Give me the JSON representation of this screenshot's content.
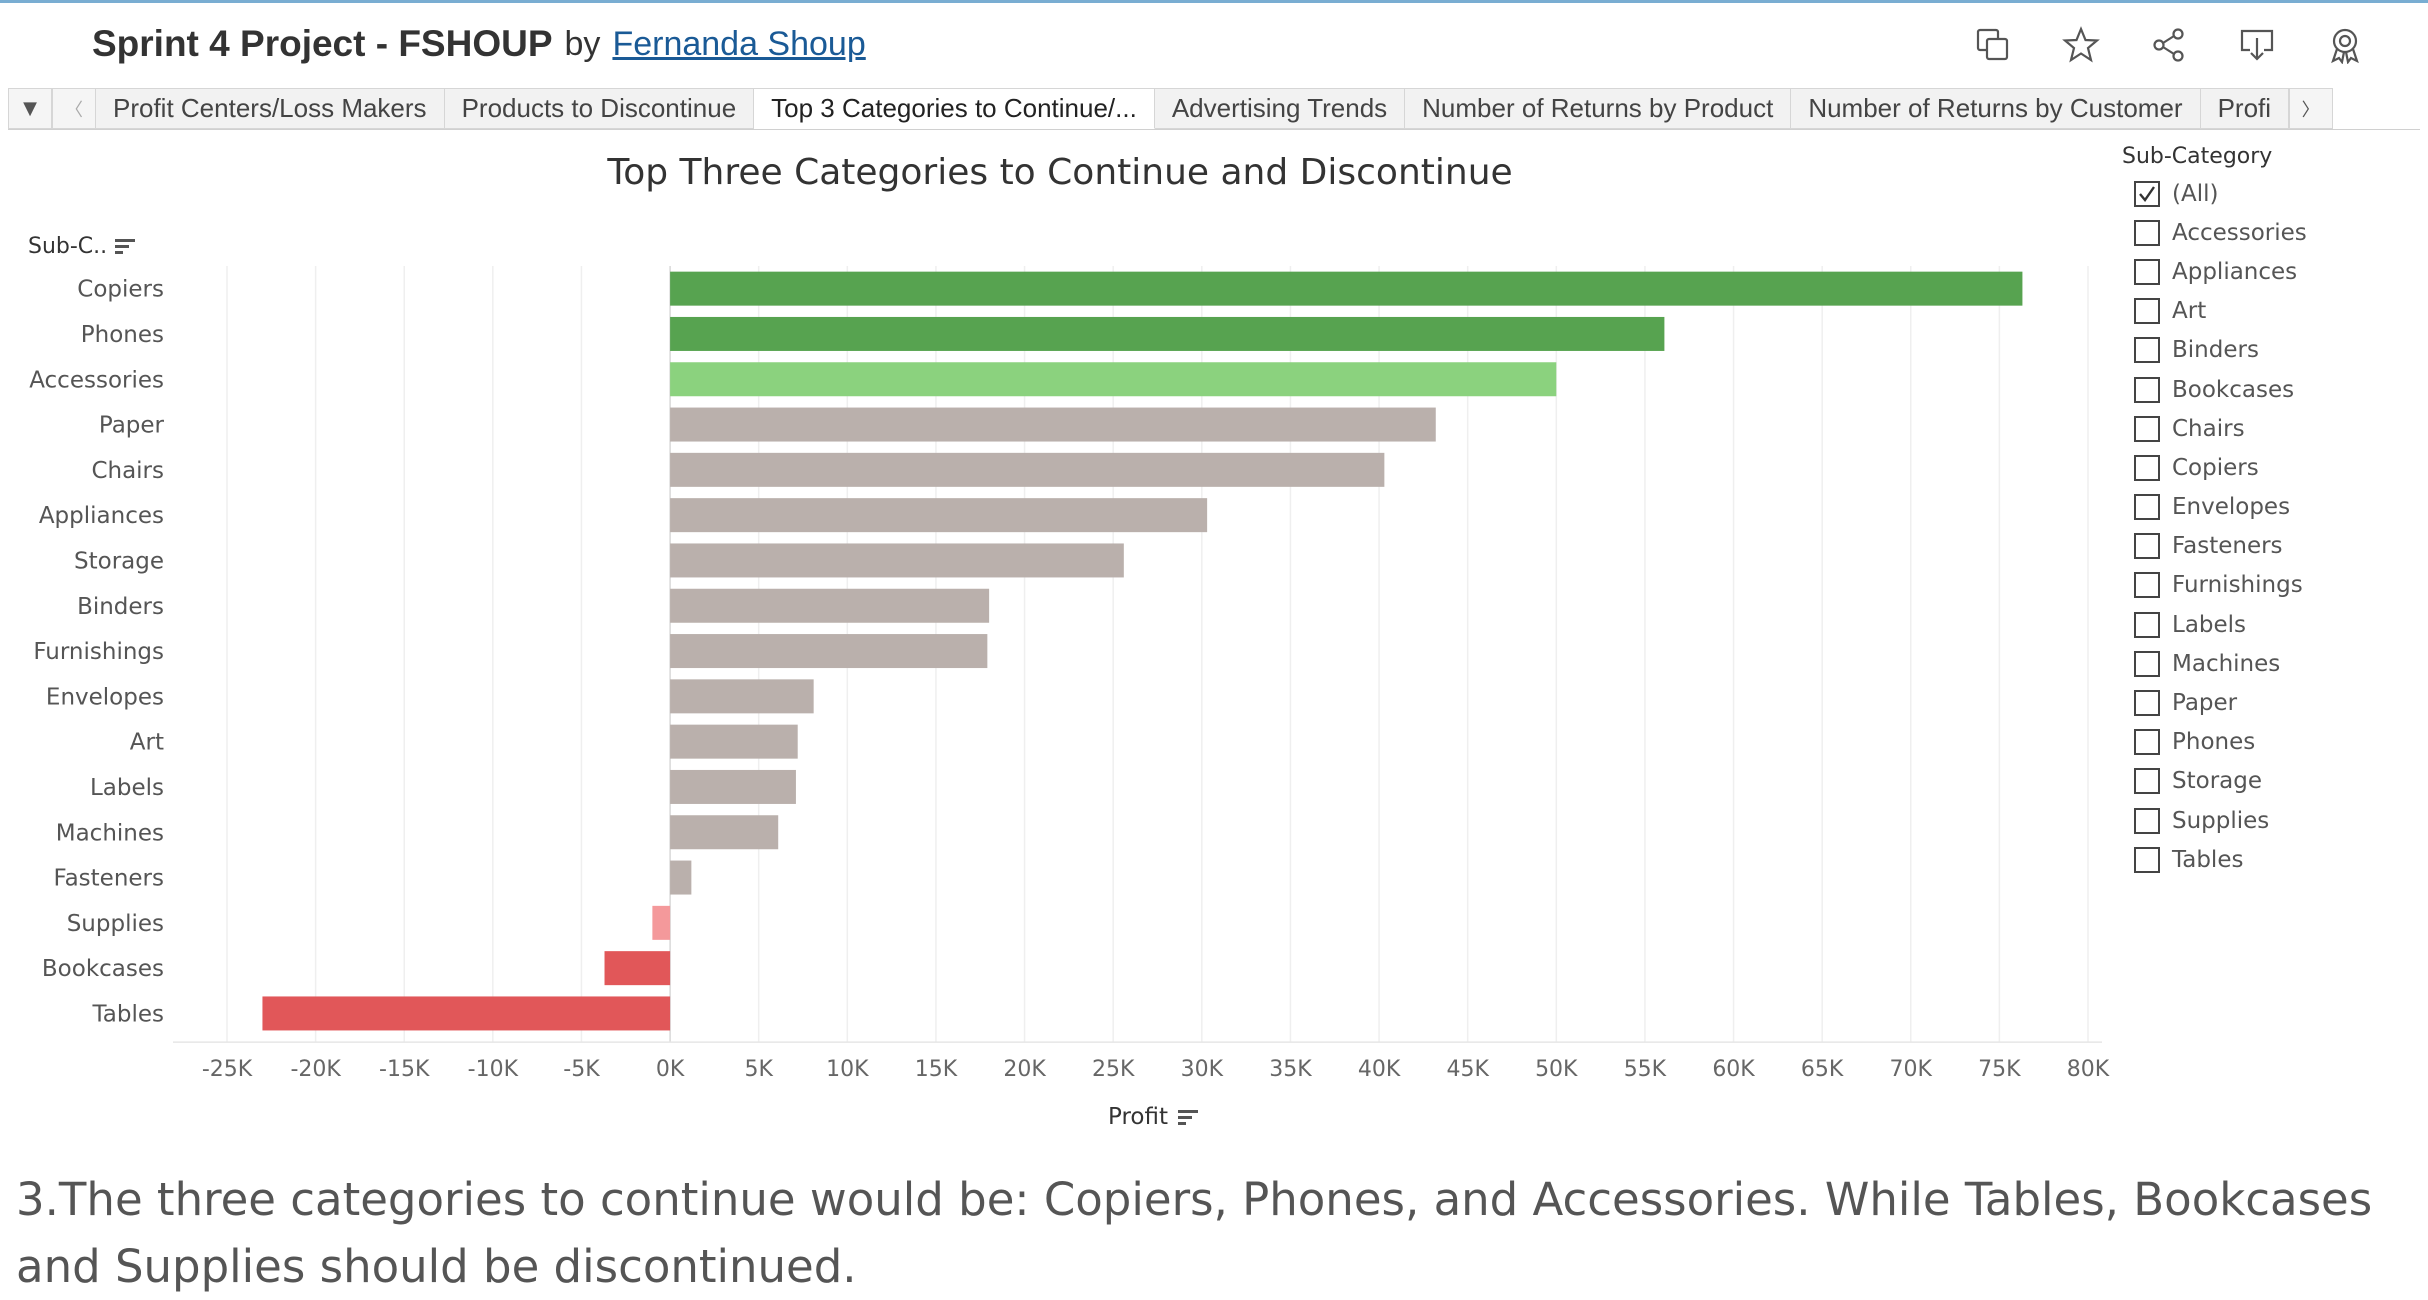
{
  "header": {
    "title": "Sprint 4 Project - FSHOUP",
    "by": "by",
    "author": "Fernanda Shoup"
  },
  "toolbar": {
    "icons": [
      "copy-icon",
      "star-icon",
      "share-icon",
      "download-icon",
      "badge-icon"
    ]
  },
  "tabs": {
    "items": [
      {
        "label": "Profit Centers/Loss Makers",
        "active": false
      },
      {
        "label": "Products to Discontinue",
        "active": false
      },
      {
        "label": "Top 3 Categories to Continue/...",
        "active": true
      },
      {
        "label": "Advertising Trends",
        "active": false
      },
      {
        "label": "Number of Returns by Product",
        "active": false
      },
      {
        "label": "Number of Returns by Customer",
        "active": false
      },
      {
        "label": "Profi",
        "active": false
      }
    ]
  },
  "chart_header": {
    "subc_label": "Sub-C..",
    "xlabel": "Profit"
  },
  "chart_data": {
    "type": "bar",
    "orientation": "horizontal",
    "title": "Top Three Categories to Continue and Discontinue",
    "xlabel": "Profit",
    "ylabel": "Sub-C..",
    "xlim": [
      -25000,
      80000
    ],
    "x_ticks": [
      -25000,
      -20000,
      -15000,
      -10000,
      -5000,
      0,
      5000,
      10000,
      15000,
      20000,
      25000,
      30000,
      35000,
      40000,
      45000,
      50000,
      55000,
      60000,
      65000,
      70000,
      75000,
      80000
    ],
    "x_tick_labels": [
      "-25K",
      "-20K",
      "-15K",
      "-10K",
      "-5K",
      "0K",
      "5K",
      "10K",
      "15K",
      "20K",
      "25K",
      "30K",
      "35K",
      "40K",
      "45K",
      "50K",
      "55K",
      "60K",
      "65K",
      "70K",
      "75K",
      "80K"
    ],
    "grid": true,
    "categories": [
      "Copiers",
      "Phones",
      "Accessories",
      "Paper",
      "Chairs",
      "Appliances",
      "Storage",
      "Binders",
      "Furnishings",
      "Envelopes",
      "Art",
      "Labels",
      "Machines",
      "Fasteners",
      "Supplies",
      "Bookcases",
      "Tables"
    ],
    "values": [
      76300,
      56100,
      50000,
      43200,
      40300,
      30300,
      25600,
      18000,
      17900,
      8100,
      7200,
      7100,
      6100,
      1200,
      -1000,
      -3700,
      -23000
    ],
    "colors": [
      "#57a350",
      "#57a350",
      "#8bd27e",
      "#bab0ac",
      "#bab0ac",
      "#bab0ac",
      "#bab0ac",
      "#bab0ac",
      "#bab0ac",
      "#bab0ac",
      "#bab0ac",
      "#bab0ac",
      "#bab0ac",
      "#bab0ac",
      "#f4999b",
      "#e15759",
      "#e15759"
    ]
  },
  "filter": {
    "title": "Sub-Category",
    "items": [
      {
        "label": "(All)",
        "checked": true
      },
      {
        "label": "Accessories",
        "checked": false
      },
      {
        "label": "Appliances",
        "checked": false
      },
      {
        "label": "Art",
        "checked": false
      },
      {
        "label": "Binders",
        "checked": false
      },
      {
        "label": "Bookcases",
        "checked": false
      },
      {
        "label": "Chairs",
        "checked": false
      },
      {
        "label": "Copiers",
        "checked": false
      },
      {
        "label": "Envelopes",
        "checked": false
      },
      {
        "label": "Fasteners",
        "checked": false
      },
      {
        "label": "Furnishings",
        "checked": false
      },
      {
        "label": "Labels",
        "checked": false
      },
      {
        "label": "Machines",
        "checked": false
      },
      {
        "label": "Paper",
        "checked": false
      },
      {
        "label": "Phones",
        "checked": false
      },
      {
        "label": "Storage",
        "checked": false
      },
      {
        "label": "Supplies",
        "checked": false
      },
      {
        "label": "Tables",
        "checked": false
      }
    ]
  },
  "caption": {
    "text": "3.The three categories to continue would be: Copiers, Phones, and Accessories. While Tables, Bookcases and Supplies should be discontinued."
  }
}
